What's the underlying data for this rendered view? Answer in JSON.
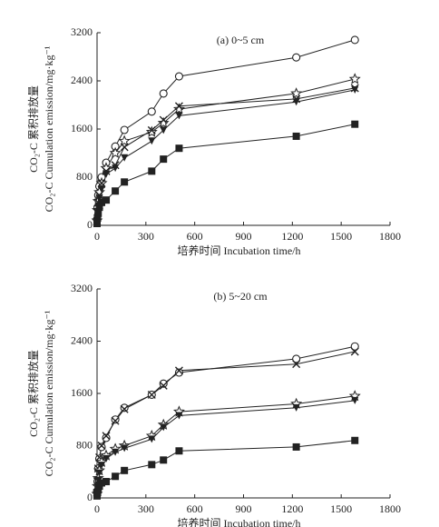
{
  "chart_data": [
    {
      "type": "line",
      "title": "(a) 0~5 cm",
      "xlabel": "培养时间 Incubation time/h",
      "ylabel": [
        "CO₂-C 累积排放量",
        "CO₂-C Cumulation emission/mg·kg⁻¹"
      ],
      "xlim": [
        0,
        1800
      ],
      "xticks": [
        0,
        300,
        600,
        900,
        1200,
        1500,
        1800
      ],
      "ylim": [
        0,
        3200
      ],
      "yticks": [
        0,
        800,
        1600,
        2400,
        3200
      ],
      "x": [
        0,
        3,
        7,
        14,
        28,
        56,
        112,
        168,
        336,
        408,
        504,
        1224,
        1584
      ],
      "series": [
        {
          "marker": "circle",
          "color": "#222",
          "values": [
            100,
            300,
            500,
            650,
            800,
            1040,
            1310,
            1585,
            1890,
            2190,
            2475,
            2790,
            3080
          ]
        },
        {
          "marker": "star",
          "color": "#222",
          "values": [
            80,
            250,
            400,
            550,
            700,
            950,
            1200,
            1400,
            1550,
            1700,
            1930,
            2190,
            2430
          ]
        },
        {
          "marker": "x",
          "color": "#222",
          "values": [
            60,
            220,
            380,
            500,
            700,
            900,
            1000,
            1300,
            1580,
            1750,
            1980,
            2100,
            2280
          ]
        },
        {
          "marker": "triangle-down",
          "color": "#222",
          "values": [
            50,
            200,
            320,
            450,
            600,
            850,
            950,
            1120,
            1400,
            1580,
            1820,
            2050,
            2250
          ]
        },
        {
          "marker": "square",
          "color": "#222",
          "values": [
            30,
            120,
            200,
            300,
            380,
            420,
            570,
            720,
            900,
            1100,
            1280,
            1480,
            1680
          ]
        }
      ]
    },
    {
      "type": "line",
      "title": "(b) 5~20 cm",
      "xlabel": "培养时间 Incubation time/h",
      "ylabel": [
        "CO₂-C 累积排放量",
        "CO₂-C Cumulation emission/mg·kg⁻¹"
      ],
      "xlim": [
        0,
        1800
      ],
      "xticks": [
        0,
        300,
        600,
        900,
        1200,
        1500,
        1800
      ],
      "ylim": [
        0,
        3200
      ],
      "yticks": [
        0,
        800,
        1600,
        2400,
        3200
      ],
      "x": [
        0,
        3,
        7,
        14,
        28,
        56,
        112,
        168,
        336,
        408,
        504,
        1224,
        1584
      ],
      "series": [
        {
          "marker": "circle",
          "color": "#222",
          "values": [
            100,
            250,
            450,
            600,
            780,
            920,
            1200,
            1380,
            1580,
            1750,
            1920,
            2130,
            2320
          ]
        },
        {
          "marker": "x",
          "color": "#222",
          "values": [
            80,
            250,
            450,
            620,
            800,
            950,
            1180,
            1360,
            1580,
            1720,
            1950,
            2050,
            2240
          ]
        },
        {
          "marker": "star",
          "color": "#222",
          "values": [
            60,
            180,
            300,
            420,
            550,
            650,
            750,
            800,
            950,
            1120,
            1320,
            1440,
            1560
          ]
        },
        {
          "marker": "triangle-down",
          "color": "#222",
          "values": [
            50,
            160,
            270,
            380,
            500,
            600,
            700,
            760,
            900,
            1080,
            1260,
            1380,
            1490
          ]
        },
        {
          "marker": "square",
          "color": "#222",
          "values": [
            30,
            80,
            130,
            180,
            230,
            250,
            330,
            420,
            510,
            580,
            720,
            780,
            880
          ]
        }
      ]
    }
  ]
}
